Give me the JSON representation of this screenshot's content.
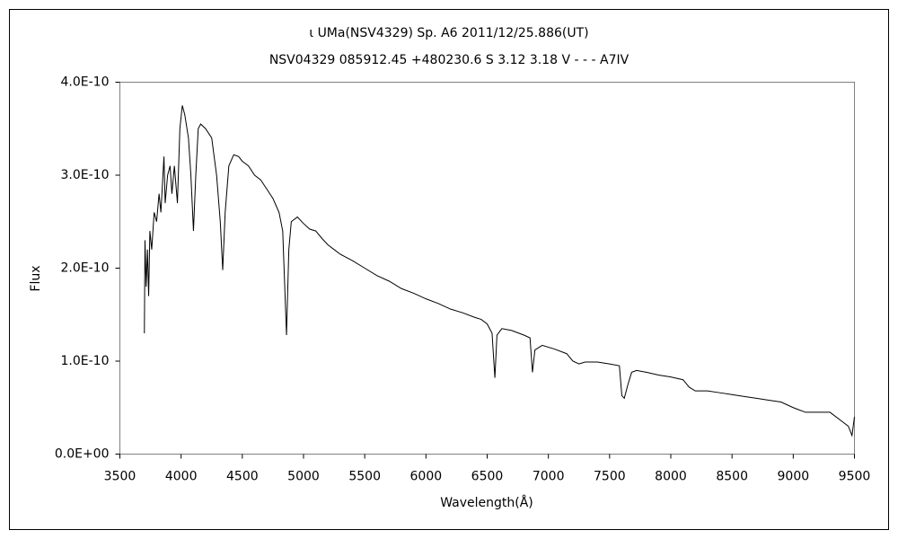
{
  "chart_data": {
    "type": "line",
    "title": "ι UMa(NSV4329)   Sp. A6   2011/12/25.886(UT)",
    "subtitle": "NSV04329 085912.45 +480230.6 S 3.12 3.18 V - - - A7IV",
    "xlabel": "Wavelength(Å)",
    "ylabel": "Flux",
    "color": "#000000",
    "xlim": [
      3500,
      9500
    ],
    "xticks": [
      3500,
      4000,
      4500,
      5000,
      5500,
      6000,
      6500,
      7000,
      7500,
      8000,
      8500,
      9000,
      9500
    ],
    "ylim": [
      0,
      4e-10
    ],
    "yticks": [
      {
        "value": 0,
        "label": "0.0E+00"
      },
      {
        "value": 1e-10,
        "label": "1.0E-10"
      },
      {
        "value": 2e-10,
        "label": "2.0E-10"
      },
      {
        "value": 3e-10,
        "label": "3.0E-10"
      },
      {
        "value": 4e-10,
        "label": "4.0E-10"
      }
    ],
    "x": [
      3700,
      3705,
      3715,
      3725,
      3735,
      3745,
      3760,
      3780,
      3800,
      3820,
      3835,
      3860,
      3870,
      3890,
      3910,
      3925,
      3945,
      3970,
      3990,
      4010,
      4030,
      4060,
      4080,
      4101,
      4120,
      4140,
      4160,
      4200,
      4250,
      4290,
      4320,
      4340,
      4360,
      4390,
      4430,
      4470,
      4500,
      4550,
      4600,
      4650,
      4700,
      4750,
      4800,
      4830,
      4861,
      4880,
      4900,
      4950,
      5000,
      5050,
      5100,
      5150,
      5200,
      5250,
      5300,
      5400,
      5500,
      5600,
      5700,
      5800,
      5900,
      6000,
      6100,
      6200,
      6300,
      6400,
      6450,
      6500,
      6540,
      6563,
      6580,
      6620,
      6700,
      6800,
      6850,
      6870,
      6890,
      6950,
      7050,
      7150,
      7200,
      7250,
      7300,
      7400,
      7500,
      7580,
      7600,
      7620,
      7650,
      7680,
      7720,
      7800,
      7900,
      8000,
      8100,
      8150,
      8200,
      8300,
      8400,
      8500,
      8600,
      8700,
      8800,
      8900,
      9000,
      9100,
      9200,
      9300,
      9400,
      9450,
      9480,
      9500
    ],
    "values": [
      1.3e-10,
      2.3e-10,
      1.8e-10,
      2.2e-10,
      1.7e-10,
      2.4e-10,
      2.2e-10,
      2.6e-10,
      2.5e-10,
      2.8e-10,
      2.6e-10,
      3.2e-10,
      2.7e-10,
      3e-10,
      3.1e-10,
      2.8e-10,
      3.1e-10,
      2.7e-10,
      3.5e-10,
      3.75e-10,
      3.65e-10,
      3.4e-10,
      3e-10,
      2.4e-10,
      3e-10,
      3.5e-10,
      3.55e-10,
      3.5e-10,
      3.4e-10,
      3e-10,
      2.5e-10,
      1.98e-10,
      2.6e-10,
      3.1e-10,
      3.22e-10,
      3.2e-10,
      3.15e-10,
      3.1e-10,
      3e-10,
      2.95e-10,
      2.85e-10,
      2.75e-10,
      2.6e-10,
      2.4e-10,
      1.28e-10,
      2.2e-10,
      2.5e-10,
      2.55e-10,
      2.48e-10,
      2.42e-10,
      2.4e-10,
      2.32e-10,
      2.25e-10,
      2.2e-10,
      2.15e-10,
      2.08e-10,
      2e-10,
      1.92e-10,
      1.86e-10,
      1.78e-10,
      1.73e-10,
      1.67e-10,
      1.62e-10,
      1.56e-10,
      1.52e-10,
      1.47e-10,
      1.45e-10,
      1.4e-10,
      1.3e-10,
      8.2e-11,
      1.28e-10,
      1.35e-10,
      1.33e-10,
      1.28e-10,
      1.25e-10,
      8.8e-11,
      1.12e-10,
      1.17e-10,
      1.13e-10,
      1.08e-10,
      1e-10,
      9.7e-11,
      9.9e-11,
      9.9e-11,
      9.7e-11,
      9.5e-11,
      6.3e-11,
      6e-11,
      7.5e-11,
      8.8e-11,
      9e-11,
      8.8e-11,
      8.5e-11,
      8.3e-11,
      8e-11,
      7.2e-11,
      6.8e-11,
      6.8e-11,
      6.6e-11,
      6.4e-11,
      6.2e-11,
      6e-11,
      5.8e-11,
      5.6e-11,
      5e-11,
      4.5e-11,
      4.5e-11,
      4.5e-11,
      3.5e-11,
      3e-11,
      2e-11,
      4e-11
    ]
  }
}
